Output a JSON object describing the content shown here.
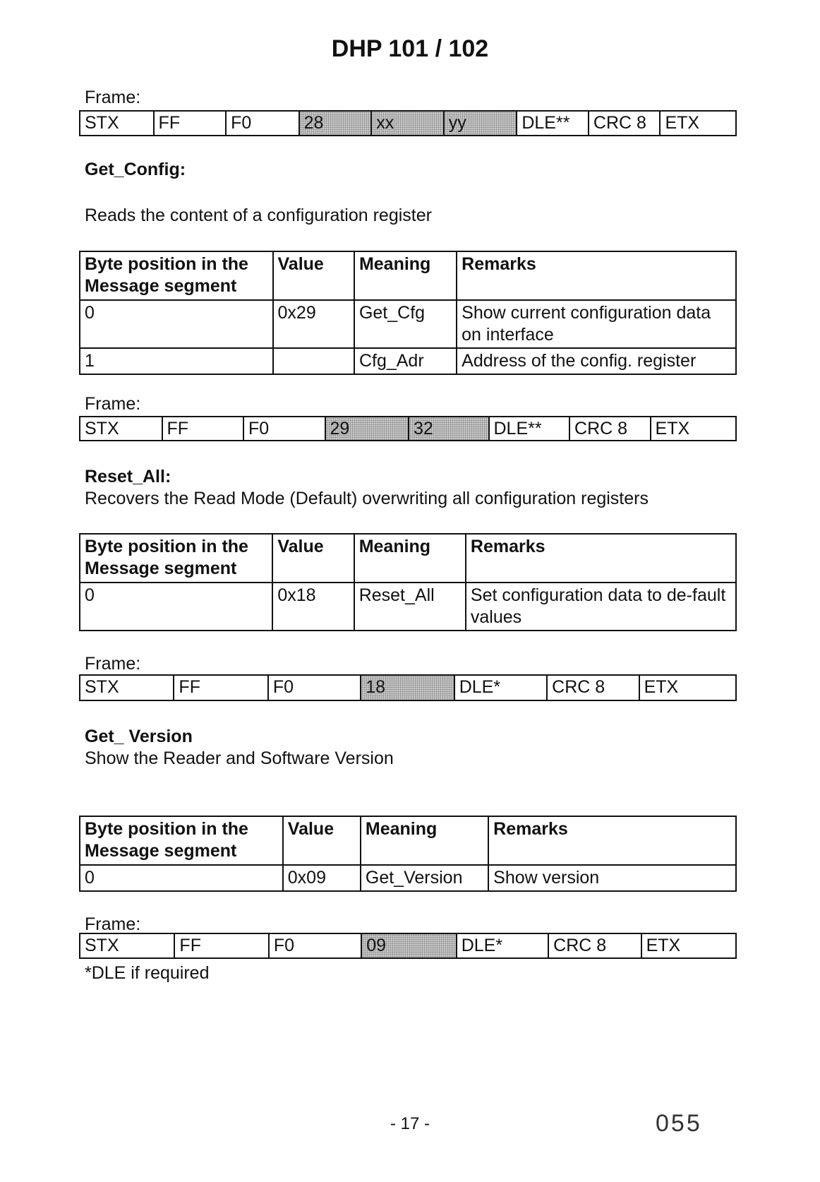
{
  "title": "DHP 101 / 102",
  "frames": [
    {
      "label": "Frame:",
      "cells": [
        {
          "t": "STX"
        },
        {
          "t": "FF"
        },
        {
          "t": "F0"
        },
        {
          "t": "28",
          "shaded": true
        },
        {
          "t": "xx",
          "shaded": true
        },
        {
          "t": "yy",
          "shaded": true
        },
        {
          "t": "DLE**"
        },
        {
          "t": "CRC 8"
        },
        {
          "t": "ETX"
        }
      ]
    },
    {
      "label": "Frame:",
      "cells": [
        {
          "t": "STX"
        },
        {
          "t": "FF"
        },
        {
          "t": "F0"
        },
        {
          "t": "29",
          "shaded": true
        },
        {
          "t": "32",
          "shaded": true
        },
        {
          "t": "DLE**"
        },
        {
          "t": "CRC 8"
        },
        {
          "t": "ETX"
        }
      ]
    },
    {
      "label": "Frame:",
      "cells": [
        {
          "t": "STX"
        },
        {
          "t": "FF"
        },
        {
          "t": "F0"
        },
        {
          "t": "18",
          "shaded": true
        },
        {
          "t": "DLE*"
        },
        {
          "t": "CRC 8"
        },
        {
          "t": "ETX"
        }
      ]
    },
    {
      "label": "Frame:",
      "cells": [
        {
          "t": "STX"
        },
        {
          "t": "FF"
        },
        {
          "t": "F0"
        },
        {
          "t": "09",
          "shaded": true
        },
        {
          "t": "DLE*"
        },
        {
          "t": "CRC 8"
        },
        {
          "t": "ETX"
        }
      ]
    }
  ],
  "sections": [
    {
      "heading": "Get_Config:",
      "description": "Reads the content of a configuration register"
    },
    {
      "heading": "Reset_All:",
      "description": "Recovers the Read Mode (Default) overwriting all configuration registers"
    },
    {
      "heading": "Get_ Version",
      "description": "Show the Reader and Software Version"
    }
  ],
  "tables": [
    {
      "headers": [
        "Byte position in the Message segment",
        "Value",
        "Meaning",
        "Remarks"
      ],
      "rows": [
        [
          "0",
          "0x29",
          "Get_Cfg",
          "Show current configuration data on interface"
        ],
        [
          "1",
          "",
          "Cfg_Adr",
          "Address of the config. register"
        ]
      ]
    },
    {
      "headers": [
        "Byte position in the Message segment",
        "Value",
        "Meaning",
        "Remarks"
      ],
      "rows": [
        [
          "0",
          "0x18",
          "Reset_All",
          "Set configuration data to de-fault values"
        ]
      ]
    },
    {
      "headers": [
        "Byte position in the Message segment",
        "Value",
        "Meaning",
        "Remarks"
      ],
      "rows": [
        [
          "0",
          "0x09",
          "Get_Version",
          "Show version"
        ]
      ]
    }
  ],
  "footnote": "*DLE if required",
  "page_number": "- 17 -",
  "stamp_number": "055"
}
